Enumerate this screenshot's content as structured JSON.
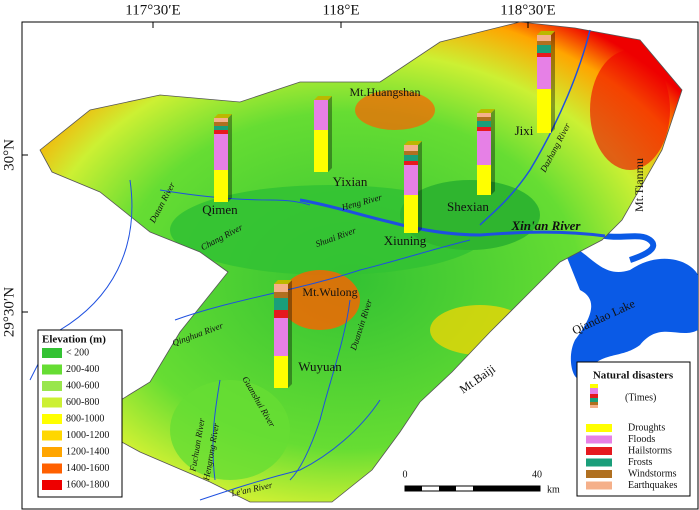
{
  "graticule": {
    "longitudes": [
      "117°30′E",
      "118°E",
      "118°30′E"
    ],
    "latitudes": [
      "30°N",
      "29°30′N"
    ]
  },
  "mountains": [
    "Mt.Huangshan",
    "Mt.Tianmu",
    "Mt.Wulong",
    "Mt.Baiji"
  ],
  "lake": "Qiandao Lake",
  "rivers": [
    "Dazhang River",
    "Heng River",
    "Xin'an River",
    "Shuai River",
    "Chang River",
    "Datan River",
    "Qinghua River",
    "Duanxin River",
    "Guanshui River",
    "Hengrong River",
    "Fuchuan River",
    "Le'an River"
  ],
  "counties": [
    {
      "name": "Qimen",
      "values": [
        16,
        18,
        2,
        2,
        2,
        2
      ]
    },
    {
      "name": "Yixian",
      "values": [
        21,
        15,
        0,
        0,
        0,
        0
      ]
    },
    {
      "name": "Xiuning",
      "values": [
        19,
        15,
        2,
        3,
        2,
        3
      ]
    },
    {
      "name": "Shexian",
      "values": [
        15,
        17,
        2,
        3,
        2,
        2
      ]
    },
    {
      "name": "Jixi",
      "values": [
        22,
        16,
        2,
        4,
        2,
        3
      ]
    },
    {
      "name": "Wuyuan",
      "values": [
        16,
        19,
        4,
        6,
        3,
        4
      ]
    }
  ],
  "elevation_legend": {
    "title": "Elevation (m)",
    "classes": [
      {
        "label": "< 200",
        "color": "#33c233"
      },
      {
        "label": "200-400",
        "color": "#66dd33"
      },
      {
        "label": "400-600",
        "color": "#99e64d"
      },
      {
        "label": "600-800",
        "color": "#ccf033"
      },
      {
        "label": "800-1000",
        "color": "#ffff00"
      },
      {
        "label": "1000-1200",
        "color": "#ffd700"
      },
      {
        "label": "1200-1400",
        "color": "#ffa500"
      },
      {
        "label": "1400-1600",
        "color": "#ff6000"
      },
      {
        "label": "1600-1800",
        "color": "#ee0000"
      }
    ]
  },
  "disaster_legend": {
    "title": "Natural disasters",
    "unit": "(Times)",
    "types": [
      {
        "name": "Droughts",
        "color": "#ffff00"
      },
      {
        "name": "Floods",
        "color": "#e680e6"
      },
      {
        "name": "Hailstorms",
        "color": "#e6191f"
      },
      {
        "name": "Frosts",
        "color": "#1a9e7a"
      },
      {
        "name": "Windstorms",
        "color": "#b07020"
      },
      {
        "name": "Earthquakes",
        "color": "#f5b08a"
      }
    ]
  },
  "scale_bar": {
    "ticks": [
      "0",
      "40"
    ],
    "unit": "km"
  }
}
